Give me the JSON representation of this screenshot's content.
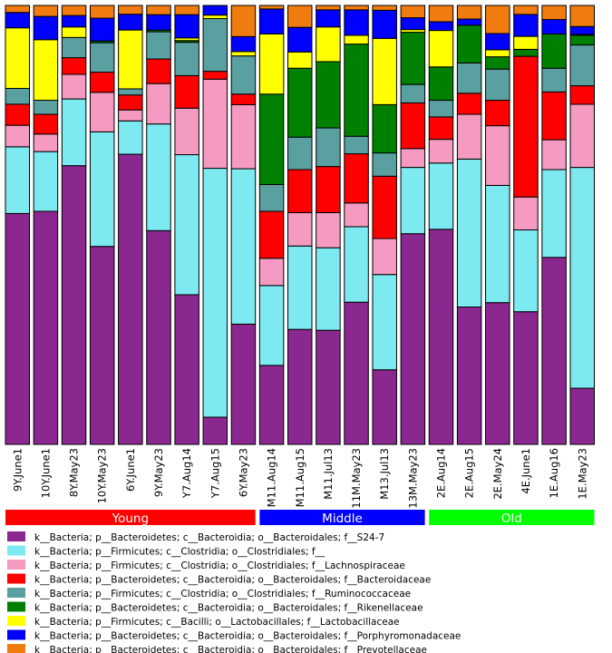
{
  "chart_data": {
    "type": "bar",
    "stacked": true,
    "normalized": true,
    "ylim": [
      0,
      1
    ],
    "categories": [
      "9Y.June1",
      "10Y.June1",
      "8Y.May23",
      "10Y.May23",
      "6Y.June1",
      "9Y.May23",
      "Y7.Aug14",
      "Y7.Aug15",
      "6Y.May23",
      "M11.Aug14",
      "M11.Aug15",
      "M11.Jul13",
      "11M.May23",
      "M13.Jul13",
      "13M.May23",
      "2E.Aug14",
      "2E.Aug15",
      "2E.May24",
      "4E.June1",
      "1E.Aug16",
      "1E.May23"
    ],
    "groups": [
      {
        "label": "Young",
        "color": "#ff0000",
        "start": 0,
        "end": 8
      },
      {
        "label": "Middle",
        "color": "#0000ff",
        "start": 9,
        "end": 14
      },
      {
        "label": "Old",
        "color": "#00ff00",
        "start": 15,
        "end": 20
      }
    ],
    "series": [
      {
        "name": "k__Bacteria; p__Bacteroidetes; c__Bacteroidia; o__Bacteroidales; f__S24-7",
        "color": "#8b2890",
        "values": [
          0.526,
          0.531,
          0.635,
          0.451,
          0.661,
          0.487,
          0.341,
          0.062,
          0.274,
          0.18,
          0.262,
          0.26,
          0.324,
          0.17,
          0.48,
          0.49,
          0.313,
          0.323,
          0.266,
          0.426,
          0.128
        ]
      },
      {
        "name": "k__Bacteria; p__Firmicutes; c__Clostridia; o__Clostridiales; f__",
        "color": "#7ceaf0",
        "values": [
          0.152,
          0.136,
          0.152,
          0.261,
          0.076,
          0.243,
          0.319,
          0.567,
          0.354,
          0.182,
          0.19,
          0.188,
          0.172,
          0.217,
          0.151,
          0.151,
          0.337,
          0.267,
          0.164,
          0.2,
          0.503
        ]
      },
      {
        "name": "k__Bacteria; p__Firmicutes; c__Clostridia; o__Clostridiales; f__Lachnospiraceae",
        "color": "#f59ac0",
        "values": [
          0.049,
          0.04,
          0.056,
          0.09,
          0.025,
          0.092,
          0.106,
          0.203,
          0.146,
          0.062,
          0.076,
          0.08,
          0.054,
          0.082,
          0.043,
          0.054,
          0.102,
          0.136,
          0.066,
          0.068,
          0.144
        ]
      },
      {
        "name": "k__Bacteria; p__Bacteroidetes; c__Bacteroidia; o__Bacteroidales; f__Bacteroidaceae",
        "color": "#ff0000",
        "values": [
          0.048,
          0.045,
          0.038,
          0.046,
          0.034,
          0.056,
          0.074,
          0.018,
          0.024,
          0.107,
          0.098,
          0.105,
          0.112,
          0.142,
          0.104,
          0.051,
          0.048,
          0.058,
          0.282,
          0.109,
          0.042
        ]
      },
      {
        "name": "k__Bacteria; p__Firmicutes; c__Clostridia; o__Clostridiales; f__Ruminococcaceae",
        "color": "#5aa0a0",
        "values": [
          0.036,
          0.032,
          0.046,
          0.067,
          0.014,
          0.062,
          0.076,
          0.12,
          0.087,
          0.061,
          0.074,
          0.088,
          0.04,
          0.053,
          0.042,
          0.038,
          0.069,
          0.071,
          0.0,
          0.054,
          0.093
        ]
      },
      {
        "name": "k__Bacteria; p__Bacteroidetes; c__Bacteroidia; o__Bacteroidales; f__Rikenellaceae",
        "color": "#008000",
        "values": [
          0.0,
          0.0,
          0.0,
          0.004,
          0.0,
          0.004,
          0.004,
          0.0,
          0.0,
          0.206,
          0.157,
          0.151,
          0.21,
          0.11,
          0.119,
          0.076,
          0.086,
          0.028,
          0.014,
          0.078,
          0.022
        ]
      },
      {
        "name": "k__Bacteria; p__Firmicutes; c__Bacilli; o__Lactobacillales; f__Lactobacillaceae",
        "color": "#ffff00",
        "values": [
          0.138,
          0.138,
          0.024,
          0.0,
          0.134,
          0.0,
          0.006,
          0.008,
          0.01,
          0.137,
          0.037,
          0.079,
          0.02,
          0.151,
          0.006,
          0.083,
          0.0,
          0.016,
          0.026,
          0.0,
          0.002
        ]
      },
      {
        "name": "k__Bacteria; p__Bacteroidetes; c__Bacteroidia; o__Bacteroidales; f__Porphyromonadaceae",
        "color": "#0000ff",
        "values": [
          0.035,
          0.053,
          0.026,
          0.052,
          0.036,
          0.035,
          0.053,
          0.022,
          0.034,
          0.057,
          0.056,
          0.039,
          0.058,
          0.064,
          0.027,
          0.02,
          0.014,
          0.037,
          0.044,
          0.033,
          0.018
        ]
      },
      {
        "name": "k__Bacteria; p__Bacteroidetes; c__Bacteroidia; o__Bacteroidales; f__Prevotellaceae",
        "color": "#f07c10",
        "values": [
          0.016,
          0.025,
          0.023,
          0.029,
          0.02,
          0.021,
          0.021,
          0.0,
          0.071,
          0.008,
          0.05,
          0.01,
          0.01,
          0.011,
          0.028,
          0.037,
          0.031,
          0.064,
          0.018,
          0.032,
          0.048
        ]
      }
    ]
  }
}
